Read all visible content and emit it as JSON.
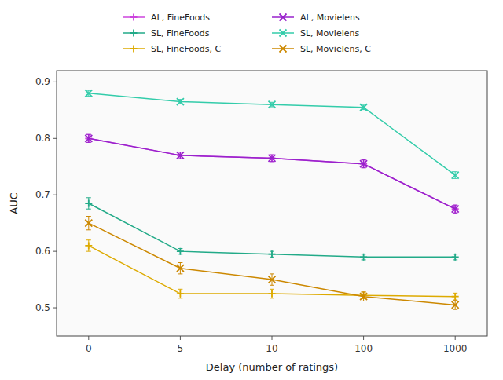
{
  "chart_data": {
    "type": "line",
    "xlabel": "Delay (number of ratings)",
    "ylabel": "AUC",
    "categories": [
      "0",
      "5",
      "10",
      "100",
      "1000"
    ],
    "ylim": [
      0.45,
      0.92
    ],
    "yticks": [
      0.5,
      0.6,
      0.7,
      0.8,
      0.9
    ],
    "grid": false,
    "legend": "top",
    "series": [
      {
        "name": "AL, FineFoods",
        "color": "#cc44dd",
        "line_style": "solid",
        "marker": "plus",
        "values": [
          0.8,
          0.77,
          0.765,
          0.755,
          0.675
        ],
        "errors": [
          0.007,
          0.006,
          0.006,
          0.007,
          0.007
        ]
      },
      {
        "name": "SL, FineFoods",
        "color": "#22aa88",
        "line_style": "solid",
        "marker": "plus",
        "values": [
          0.685,
          0.6,
          0.595,
          0.59,
          0.59
        ],
        "errors": [
          0.01,
          0.005,
          0.005,
          0.005,
          0.005
        ]
      },
      {
        "name": "SL, FineFoods, C",
        "color": "#ddaa00",
        "line_style": "solid",
        "marker": "plus",
        "values": [
          0.61,
          0.525,
          0.525,
          0.522,
          0.52
        ],
        "errors": [
          0.01,
          0.008,
          0.008,
          0.006,
          0.006
        ]
      },
      {
        "name": "AL, Movielens",
        "color": "#9922cc",
        "line_style": "solid",
        "marker": "x",
        "values": [
          0.8,
          0.77,
          0.765,
          0.755,
          0.675
        ],
        "errors": [
          0.007,
          0.006,
          0.006,
          0.007,
          0.007
        ]
      },
      {
        "name": "SL, Movielens",
        "color": "#33ccaa",
        "line_style": "solid",
        "marker": "x",
        "values": [
          0.88,
          0.865,
          0.86,
          0.855,
          0.735
        ],
        "errors": [
          0.005,
          0.004,
          0.004,
          0.004,
          0.006
        ]
      },
      {
        "name": "SL, Movielens, C",
        "color": "#cc8800",
        "line_style": "solid",
        "marker": "x",
        "values": [
          0.65,
          0.57,
          0.55,
          0.52,
          0.505
        ],
        "errors": [
          0.012,
          0.01,
          0.01,
          0.008,
          0.008
        ]
      }
    ]
  }
}
